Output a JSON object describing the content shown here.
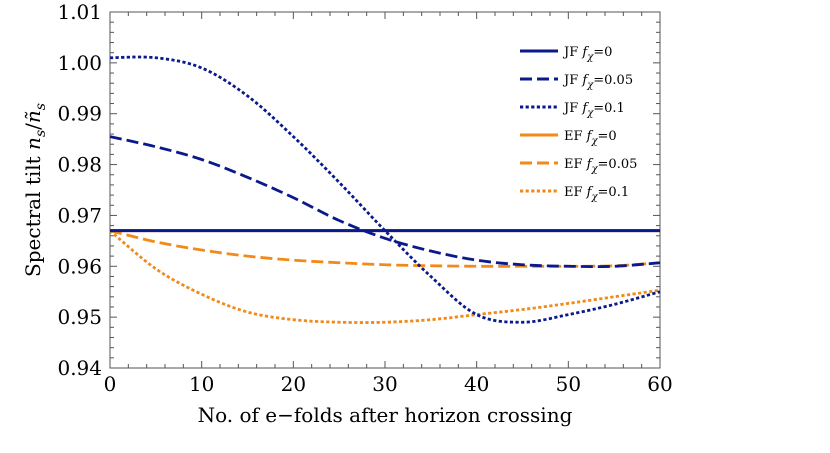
{
  "chart_data": {
    "type": "line",
    "xlabel": "No. of e−folds after horizon crossing",
    "ylabel": "Spectral tilt n_s/ñ_s",
    "ylabel_parts": {
      "prefix": "Spectral tilt ",
      "n1": "n",
      "s1": "s",
      "slash": "/",
      "n2": "ñ",
      "s2": "s"
    },
    "xlim": [
      0,
      60
    ],
    "ylim": [
      0.94,
      1.01
    ],
    "xticks": [
      0,
      10,
      20,
      30,
      40,
      50,
      60
    ],
    "xtick_labels": [
      "0",
      "10",
      "20",
      "30",
      "40",
      "50",
      "60"
    ],
    "yticks": [
      0.94,
      0.95,
      0.96,
      0.97,
      0.98,
      0.99,
      1.0,
      1.01
    ],
    "ytick_labels": [
      "0.94",
      "0.95",
      "0.96",
      "0.97",
      "0.98",
      "0.99",
      "1.00",
      "1.01"
    ],
    "grid": false,
    "legend_position": "right",
    "series": [
      {
        "name": "JF fχ=0",
        "frame": "JF",
        "fchi": "0",
        "color": "#0a1a8c",
        "style": "solid",
        "x": [
          0,
          60
        ],
        "y": [
          0.967,
          0.967
        ]
      },
      {
        "name": "JF fχ=0.05",
        "frame": "JF",
        "fchi": "0.05",
        "color": "#0a1a8c",
        "style": "dashed",
        "x": [
          0,
          5,
          10,
          15,
          20,
          25,
          30,
          35,
          40,
          45,
          50,
          55,
          60
        ],
        "y": [
          0.9855,
          0.9835,
          0.981,
          0.9775,
          0.9735,
          0.969,
          0.9655,
          0.963,
          0.9612,
          0.9603,
          0.96,
          0.96,
          0.9607
        ]
      },
      {
        "name": "JF fχ=0.1",
        "frame": "JF",
        "fchi": "0.1",
        "color": "#0a1a8c",
        "style": "dotted",
        "x": [
          0,
          5,
          10,
          15,
          20,
          25,
          30,
          35,
          40,
          45,
          50,
          55,
          60
        ],
        "y": [
          1.001,
          1.001,
          0.999,
          0.9935,
          0.9855,
          0.9765,
          0.967,
          0.958,
          0.9505,
          0.949,
          0.9505,
          0.9525,
          0.955
        ]
      },
      {
        "name": "EF fχ=0",
        "frame": "EF",
        "fchi": "0",
        "color": "#f28a1a",
        "style": "solid",
        "x": [
          0,
          60
        ],
        "y": [
          0.967,
          0.967
        ]
      },
      {
        "name": "EF fχ=0.05",
        "frame": "EF",
        "fchi": "0.05",
        "color": "#f28a1a",
        "style": "dashed",
        "x": [
          0,
          5,
          10,
          15,
          20,
          25,
          30,
          35,
          40,
          45,
          50,
          55,
          60
        ],
        "y": [
          0.967,
          0.9648,
          0.9632,
          0.962,
          0.9612,
          0.9607,
          0.9603,
          0.9601,
          0.96,
          0.96,
          0.96,
          0.9601,
          0.9607
        ]
      },
      {
        "name": "EF fχ=0.1",
        "frame": "EF",
        "fchi": "0.1",
        "color": "#f28a1a",
        "style": "dotted",
        "x": [
          0,
          5,
          10,
          15,
          20,
          25,
          30,
          35,
          40,
          45,
          50,
          55,
          60
        ],
        "y": [
          0.967,
          0.9595,
          0.9545,
          0.951,
          0.9495,
          0.949,
          0.949,
          0.9495,
          0.9505,
          0.9515,
          0.9527,
          0.954,
          0.9553
        ]
      }
    ]
  }
}
